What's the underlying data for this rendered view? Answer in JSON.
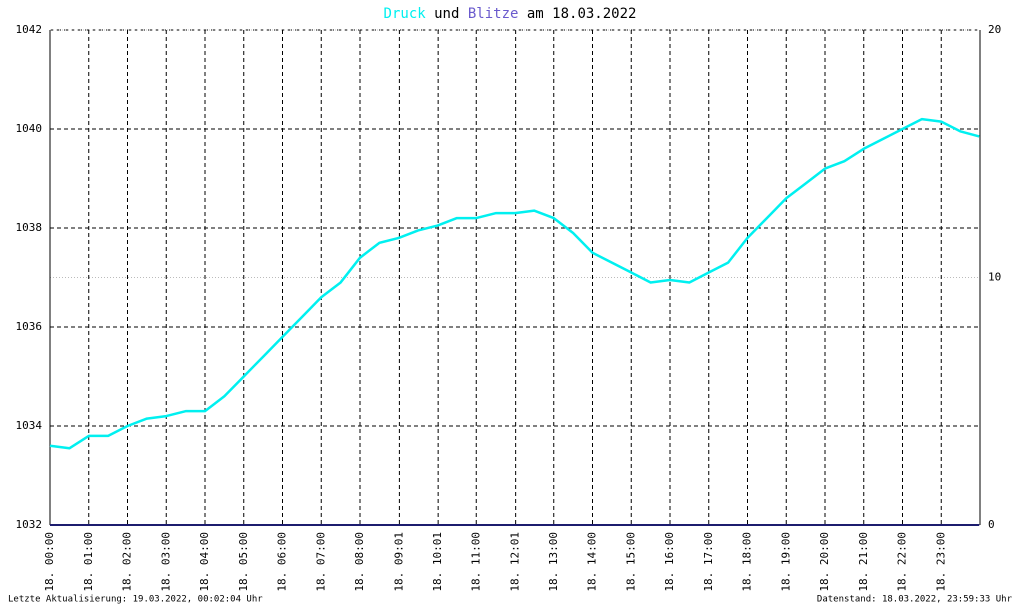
{
  "chart_data": {
    "type": "line",
    "title_join": "und",
    "title_suffix": "am 18.03.2022",
    "footer_left": "Letzte Aktualisierung: 19.03.2022, 00:02:04 Uhr",
    "footer_right": "Datenstand: 18.03.2022, 23:59:33 Uhr",
    "xlim": [
      0,
      24
    ],
    "xticks": [
      {
        "value": 0,
        "label": "18. 00:00"
      },
      {
        "value": 1,
        "label": "18. 01:00"
      },
      {
        "value": 2,
        "label": "18. 02:00"
      },
      {
        "value": 3,
        "label": "18. 03:00"
      },
      {
        "value": 4,
        "label": "18. 04:00"
      },
      {
        "value": 5,
        "label": "18. 05:00"
      },
      {
        "value": 6,
        "label": "18. 06:00"
      },
      {
        "value": 7,
        "label": "18. 07:00"
      },
      {
        "value": 8,
        "label": "18. 08:00"
      },
      {
        "value": 9.0167,
        "label": "18. 09:01"
      },
      {
        "value": 10.0167,
        "label": "18. 10:01"
      },
      {
        "value": 11,
        "label": "18. 11:00"
      },
      {
        "value": 12.0167,
        "label": "18. 12:01"
      },
      {
        "value": 13,
        "label": "18. 13:00"
      },
      {
        "value": 14,
        "label": "18. 14:00"
      },
      {
        "value": 15,
        "label": "18. 15:00"
      },
      {
        "value": 16,
        "label": "18. 16:00"
      },
      {
        "value": 17,
        "label": "18. 17:00"
      },
      {
        "value": 18,
        "label": "18. 18:00"
      },
      {
        "value": 19,
        "label": "18. 19:00"
      },
      {
        "value": 20,
        "label": "18. 20:00"
      },
      {
        "value": 21,
        "label": "18. 21:00"
      },
      {
        "value": 22,
        "label": "18. 22:00"
      },
      {
        "value": 23,
        "label": "18. 23:00"
      }
    ],
    "ylim": [
      1032,
      1042
    ],
    "yticks": [
      1032,
      1034,
      1036,
      1038,
      1040,
      1042
    ],
    "y2lim": [
      0,
      20
    ],
    "y2ticks": [
      0,
      10,
      20
    ],
    "grid": true,
    "series": [
      {
        "name": "Druck",
        "color": "#00f0f0",
        "x": [
          0,
          0.5,
          1,
          1.5,
          2,
          2.5,
          3,
          3.5,
          4,
          4.5,
          5,
          5.5,
          6,
          6.5,
          7,
          7.5,
          8,
          8.5,
          9,
          9.5,
          10,
          10.5,
          11,
          11.5,
          12,
          12.5,
          13,
          13.5,
          14,
          14.5,
          15,
          15.5,
          16,
          16.5,
          17,
          17.5,
          18,
          18.5,
          19,
          19.5,
          20,
          20.5,
          21,
          21.5,
          22,
          22.5,
          23,
          23.5,
          23.98
        ],
        "values": [
          1033.6,
          1033.55,
          1033.8,
          1033.8,
          1034.0,
          1034.15,
          1034.2,
          1034.3,
          1034.3,
          1034.6,
          1035.0,
          1035.4,
          1035.8,
          1036.2,
          1036.6,
          1036.9,
          1037.4,
          1037.7,
          1037.8,
          1037.95,
          1038.05,
          1038.2,
          1038.2,
          1038.3,
          1038.3,
          1038.35,
          1038.2,
          1037.9,
          1037.5,
          1037.3,
          1037.1,
          1036.9,
          1036.95,
          1036.9,
          1037.1,
          1037.3,
          1037.8,
          1038.2,
          1038.6,
          1038.9,
          1039.2,
          1039.35,
          1039.6,
          1039.8,
          1040.0,
          1040.2,
          1040.15,
          1039.95,
          1039.85
        ]
      },
      {
        "name": "Blitze",
        "color": "#6a5acd",
        "line_color": "#1c1c6e",
        "axis": "y2",
        "x": [
          0,
          23.98
        ],
        "values": [
          0,
          0
        ]
      }
    ]
  }
}
